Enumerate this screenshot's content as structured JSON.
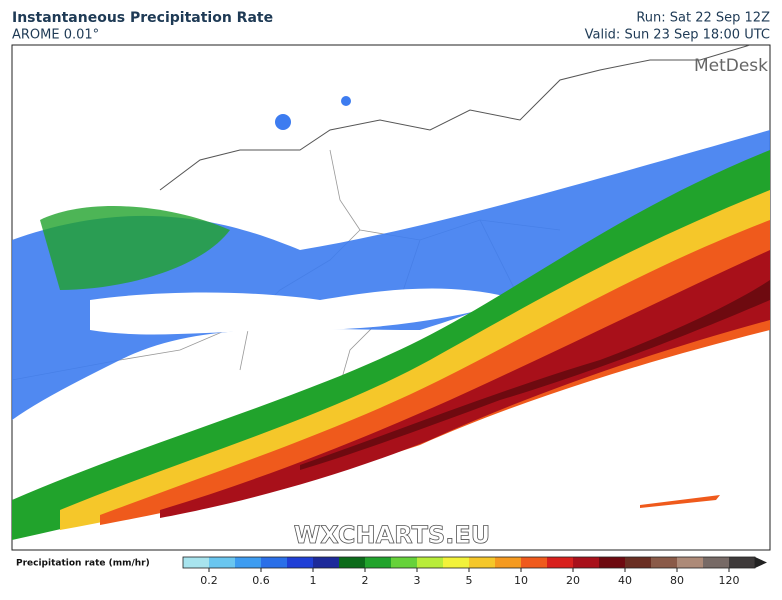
{
  "header": {
    "title": "Instantaneous Precipitation Rate",
    "model": "AROME 0.01°",
    "run": "Run: Sat 22 Sep 12Z",
    "valid": "Valid: Sun 23 Sep 18:00 UTC"
  },
  "map": {
    "brand": "MetDesk",
    "watermark": "WXCHARTS.EU"
  },
  "colorbar": {
    "label": "Precipitation rate (mm/hr)",
    "ticks": [
      "0.2",
      "0.6",
      "1",
      "2",
      "3",
      "5",
      "10",
      "20",
      "40",
      "80",
      "120"
    ],
    "colors": [
      "#a8e4ee",
      "#6ac6ef",
      "#3d9cf0",
      "#2a6fe8",
      "#1f3fd6",
      "#1d2a9a",
      "#0c6b1a",
      "#21a32c",
      "#66d23a",
      "#b8ec3a",
      "#f2f23a",
      "#f5c72a",
      "#f59a20",
      "#ef5a1c",
      "#d8201c",
      "#a8101a",
      "#6e0a10",
      "#6a2e22",
      "#8a5a48",
      "#ad8a78",
      "#776a66",
      "#3e3a3a"
    ]
  }
}
